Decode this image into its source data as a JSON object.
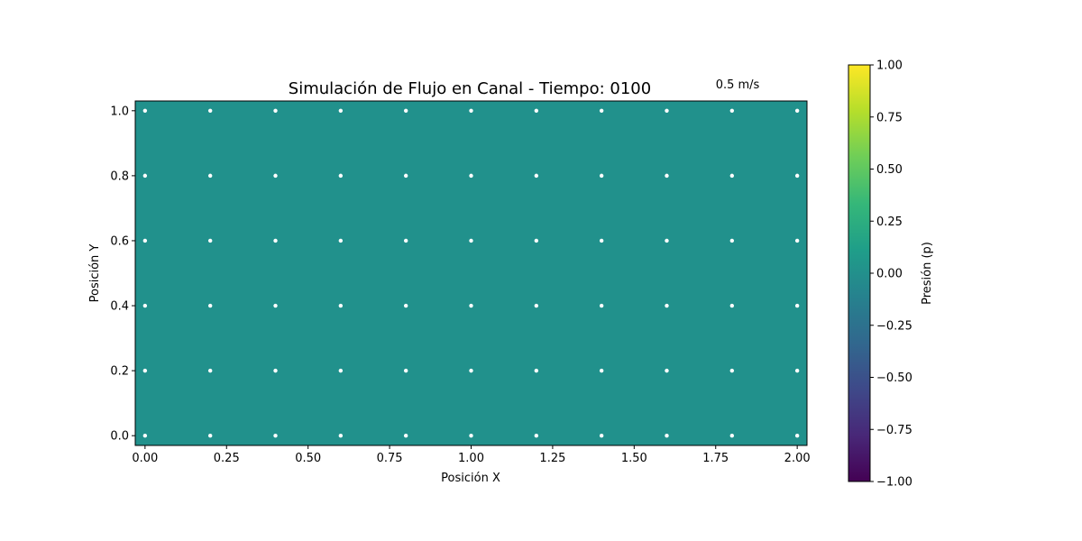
{
  "chart_data": {
    "type": "heatmap",
    "title": "Simulación de Flujo en Canal - Tiempo: 0100",
    "xlabel": "Posición X",
    "ylabel": "Posición Y",
    "xlim": [
      -0.03,
      2.03
    ],
    "ylim": [
      -0.03,
      1.03
    ],
    "x_ticks": [
      "0.00",
      "0.25",
      "0.50",
      "0.75",
      "1.00",
      "1.25",
      "1.50",
      "1.75",
      "2.00"
    ],
    "x_tick_values": [
      0,
      0.25,
      0.5,
      0.75,
      1.0,
      1.25,
      1.5,
      1.75,
      2.0
    ],
    "y_ticks": [
      "0.0",
      "0.2",
      "0.4",
      "0.6",
      "0.8",
      "1.0"
    ],
    "y_tick_values": [
      0,
      0.2,
      0.4,
      0.6,
      0.8,
      1.0
    ],
    "field": {
      "name": "pressure",
      "value": 0.0,
      "color": "#21918c"
    },
    "quiver_points": {
      "x": [
        0,
        0.2,
        0.4,
        0.6,
        0.8,
        1.0,
        1.2,
        1.4,
        1.6,
        1.8,
        2.0
      ],
      "y": [
        0,
        0.2,
        0.4,
        0.6,
        0.8,
        1.0
      ],
      "color": "#ffffff"
    },
    "quiver_key": {
      "label": "0.5 m/s"
    },
    "colorbar": {
      "label": "Presión (p)",
      "range": [
        -1.0,
        1.0
      ],
      "colormap": "viridis",
      "ticks": [
        "−1.00",
        "−0.75",
        "−0.50",
        "−0.25",
        "0.00",
        "0.25",
        "0.50",
        "0.75",
        "1.00"
      ],
      "tick_values": [
        -1.0,
        -0.75,
        -0.5,
        -0.25,
        0.0,
        0.25,
        0.5,
        0.75,
        1.0
      ],
      "colors": [
        "#440154",
        "#482878",
        "#3e4989",
        "#31688e",
        "#26828e",
        "#1f9e89",
        "#35b779",
        "#6ece58",
        "#b5de2b",
        "#fde725"
      ]
    }
  }
}
